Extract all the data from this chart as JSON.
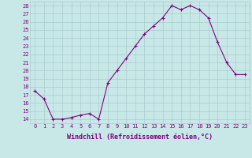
{
  "x": [
    0,
    1,
    2,
    3,
    4,
    5,
    6,
    7,
    8,
    9,
    10,
    11,
    12,
    13,
    14,
    15,
    16,
    17,
    18,
    19,
    20,
    21,
    22,
    23
  ],
  "y": [
    17.5,
    16.5,
    14.0,
    14.0,
    14.2,
    14.5,
    14.7,
    14.0,
    18.5,
    20.0,
    21.5,
    23.0,
    24.5,
    25.5,
    26.5,
    28.0,
    27.5,
    28.0,
    27.5,
    26.5,
    23.5,
    21.0,
    19.5,
    19.5
  ],
  "line_color": "#800080",
  "marker": "+",
  "marker_color": "#800080",
  "bg_color": "#c8e8e8",
  "grid_color": "#a8cccc",
  "xlabel": "Windchill (Refroidissement éolien,°C)",
  "xlabel_color": "#800080",
  "tick_color": "#800080",
  "ylim": [
    13.5,
    28.5
  ],
  "xlim": [
    -0.5,
    23.5
  ],
  "yticks": [
    14,
    15,
    16,
    17,
    18,
    19,
    20,
    21,
    22,
    23,
    24,
    25,
    26,
    27,
    28
  ],
  "xticks": [
    0,
    1,
    2,
    3,
    4,
    5,
    6,
    7,
    8,
    9,
    10,
    11,
    12,
    13,
    14,
    15,
    16,
    17,
    18,
    19,
    20,
    21,
    22,
    23
  ],
  "tick_fontsize": 5.0,
  "xlabel_fontsize": 6.0
}
